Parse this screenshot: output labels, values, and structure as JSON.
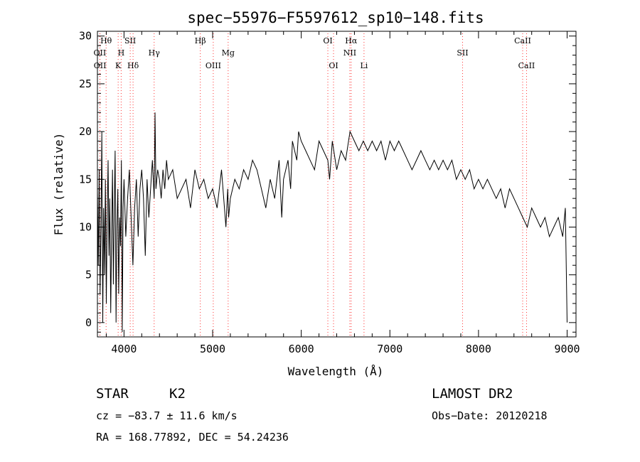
{
  "chart_data": {
    "type": "line",
    "title": "spec−55976−F5597612_sp10−148.fits",
    "xlabel": "Wavelength (Å)",
    "ylabel": "Flux (relative)",
    "xlim": [
      3700,
      9100
    ],
    "ylim": [
      -1.5,
      30.5
    ],
    "x_ticks": [
      4000,
      5000,
      6000,
      7000,
      8000,
      9000
    ],
    "y_ticks": [
      0,
      5,
      10,
      15,
      20,
      25,
      30
    ],
    "grid": false,
    "line_color": "#000000",
    "marker_color": "#ff3333",
    "spectral_lines": [
      {
        "label": "Hθ",
        "wavelength": 3798,
        "row": 0
      },
      {
        "label": "OII",
        "wavelength": 3727,
        "row": 1
      },
      {
        "label": "OII",
        "wavelength": 3729,
        "row": 2
      },
      {
        "label": "SII",
        "wavelength": 4070,
        "row": 0
      },
      {
        "label": "H",
        "wavelength": 3968,
        "row": 1
      },
      {
        "label": "K",
        "wavelength": 3934,
        "row": 2
      },
      {
        "label": "Hδ",
        "wavelength": 4102,
        "row": 2
      },
      {
        "label": "Hγ",
        "wavelength": 4340,
        "row": 1
      },
      {
        "label": "Hβ",
        "wavelength": 4861,
        "row": 0
      },
      {
        "label": "Mg",
        "wavelength": 5175,
        "row": 1
      },
      {
        "label": "OIII",
        "wavelength": 5007,
        "row": 2
      },
      {
        "label": "OI",
        "wavelength": 6300,
        "row": 0
      },
      {
        "label": "Hα",
        "wavelength": 6563,
        "row": 0
      },
      {
        "label": "NII",
        "wavelength": 6548,
        "row": 1
      },
      {
        "label": "OI",
        "wavelength": 6364,
        "row": 2
      },
      {
        "label": "Li",
        "wavelength": 6708,
        "row": 2
      },
      {
        "label": "SII",
        "wavelength": 7820,
        "row": 1
      },
      {
        "label": "CaII",
        "wavelength": 8498,
        "row": 0
      },
      {
        "label": "CaII",
        "wavelength": 8542,
        "row": 2
      }
    ],
    "series": [
      {
        "x": [
          3700,
          3710,
          3720,
          3730,
          3740,
          3750,
          3760,
          3770,
          3780,
          3790,
          3800,
          3810,
          3820,
          3830,
          3840,
          3850,
          3860,
          3870,
          3880,
          3890,
          3900,
          3910,
          3920,
          3930,
          3940,
          3950,
          3960,
          3970,
          3980,
          3990,
          4000,
          4020,
          4040,
          4060,
          4080,
          4100,
          4120,
          4140,
          4160,
          4180,
          4200,
          4220,
          4240,
          4260,
          4280,
          4300,
          4320,
          4340,
          4350,
          4360,
          4380,
          4400,
          4420,
          4440,
          4460,
          4480,
          4500,
          4550,
          4600,
          4650,
          4700,
          4750,
          4800,
          4850,
          4900,
          4950,
          5000,
          5050,
          5100,
          5150,
          5170,
          5180,
          5200,
          5250,
          5300,
          5350,
          5400,
          5450,
          5500,
          5550,
          5600,
          5650,
          5700,
          5750,
          5780,
          5800,
          5850,
          5880,
          5900,
          5950,
          5970,
          6000,
          6050,
          6100,
          6150,
          6200,
          6250,
          6300,
          6320,
          6350,
          6400,
          6450,
          6500,
          6550,
          6600,
          6650,
          6700,
          6750,
          6800,
          6850,
          6900,
          6950,
          7000,
          7050,
          7100,
          7150,
          7200,
          7250,
          7300,
          7350,
          7400,
          7450,
          7500,
          7550,
          7600,
          7650,
          7700,
          7750,
          7800,
          7850,
          7900,
          7950,
          8000,
          8050,
          8100,
          8150,
          8200,
          8250,
          8300,
          8350,
          8400,
          8450,
          8500,
          8550,
          8600,
          8650,
          8700,
          8750,
          8800,
          8850,
          8900,
          8950,
          8980,
          9000
        ],
        "y": [
          14,
          6,
          16,
          3,
          10,
          20,
          0,
          12,
          5,
          15,
          2,
          11,
          17,
          7,
          13,
          1,
          9,
          16,
          4,
          12,
          18,
          0,
          10,
          14,
          3,
          11,
          8,
          17,
          -1,
          12,
          15,
          9,
          13,
          16,
          11,
          6,
          12,
          15,
          9,
          14,
          16,
          13,
          7,
          15,
          11,
          14,
          17,
          13,
          22,
          14,
          16,
          15,
          13,
          16,
          14,
          17,
          15,
          16,
          13,
          14,
          15,
          12,
          16,
          14,
          15,
          13,
          14,
          12,
          16,
          10,
          14,
          11,
          13,
          15,
          14,
          16,
          15,
          17,
          16,
          14,
          12,
          15,
          13,
          17,
          11,
          15,
          17,
          14,
          19,
          17,
          20,
          19,
          18,
          17,
          16,
          19,
          18,
          17,
          15,
          19,
          16,
          18,
          17,
          20,
          19,
          18,
          19,
          18,
          19,
          18,
          19,
          17,
          19,
          18,
          19,
          18,
          17,
          16,
          17,
          18,
          17,
          16,
          17,
          16,
          17,
          16,
          17,
          15,
          16,
          15,
          16,
          14,
          15,
          14,
          15,
          14,
          13,
          14,
          12,
          14,
          13,
          12,
          11,
          10,
          12,
          11,
          10,
          11,
          9,
          10,
          11,
          9,
          12,
          0
        ]
      }
    ]
  },
  "footer": {
    "object_class": "STAR",
    "subclass": "K2",
    "survey": "LAMOST DR2",
    "cz": "cz = −83.7 ± 11.6 km/s",
    "obs_date": "Obs−Date: 20120218",
    "coords": "RA = 168.77892, DEC =  54.24236"
  }
}
